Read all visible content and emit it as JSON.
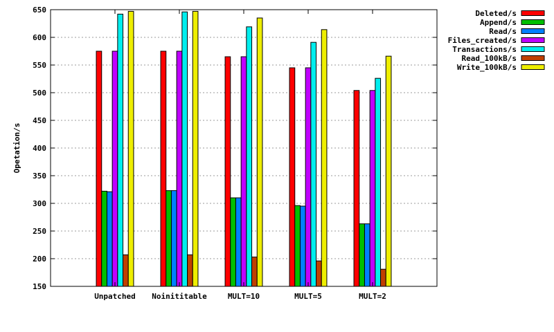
{
  "chart_data": {
    "type": "bar",
    "title": "",
    "xlabel": "",
    "ylabel": "Opetation/s",
    "ylim": [
      150,
      650
    ],
    "yticks": [
      150,
      200,
      250,
      300,
      350,
      400,
      450,
      500,
      550,
      600,
      650
    ],
    "grid": true,
    "legend_position": "outside-top-right",
    "categories": [
      "Unpatched",
      "Noinititable",
      "MULT=10",
      "MULT=5",
      "MULT=2"
    ],
    "series": [
      {
        "name": "Deleted/s",
        "color": "#ff0000",
        "values": [
          575,
          575,
          565,
          545,
          504
        ]
      },
      {
        "name": "Append/s",
        "color": "#00c000",
        "values": [
          322,
          323,
          310,
          296,
          263
        ]
      },
      {
        "name": "Read/s",
        "color": "#0080ff",
        "values": [
          321,
          323,
          310,
          295,
          263
        ]
      },
      {
        "name": "Files_created/s",
        "color": "#c000ff",
        "values": [
          575,
          575,
          565,
          545,
          504
        ]
      },
      {
        "name": "Transactions/s",
        "color": "#00eeee",
        "values": [
          642,
          646,
          619,
          591,
          526
        ]
      },
      {
        "name": "Read_100kB/s",
        "color": "#c04000",
        "values": [
          207,
          207,
          203,
          196,
          181
        ]
      },
      {
        "name": "Write_100kB/s",
        "color": "#eeee00",
        "values": [
          647,
          647,
          635,
          614,
          566
        ]
      }
    ]
  }
}
